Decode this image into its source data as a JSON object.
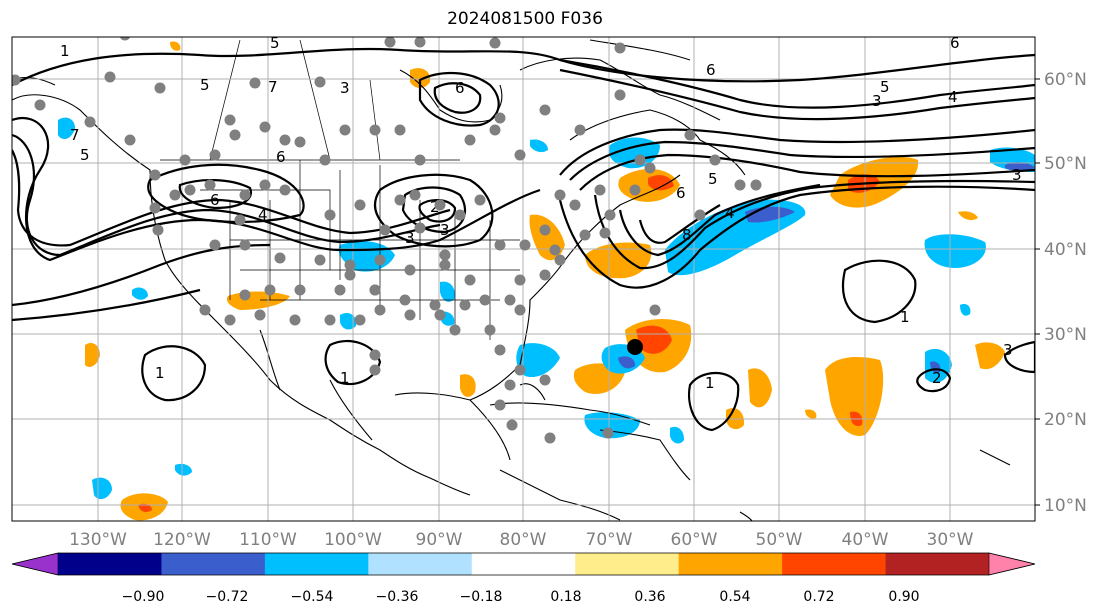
{
  "title": "2024081500 F036",
  "map": {
    "lon_labels": [
      "130°W",
      "120°W",
      "110°W",
      "100°W",
      "90°W",
      "80°W",
      "70°W",
      "60°W",
      "50°W",
      "40°W",
      "30°W"
    ],
    "lat_labels": [
      "60°N",
      "50°N",
      "40°N",
      "30°N",
      "20°N",
      "10°N"
    ],
    "contour_labels": [
      "1",
      "5",
      "7",
      "3",
      "6",
      "5",
      "6",
      "3",
      "5",
      "4",
      "6",
      "7",
      "5",
      "6",
      "4",
      "3",
      "2",
      "3",
      "3",
      "6",
      "4",
      "8",
      "5",
      "6",
      "1",
      "1",
      "1",
      "1",
      "2",
      "3"
    ]
  },
  "colorbar": {
    "ticks": [
      "−0.90",
      "−0.72",
      "−0.54",
      "−0.36",
      "−0.18",
      "0.18",
      "0.36",
      "0.54",
      "0.72",
      "0.90"
    ],
    "colors": [
      "#9932cc",
      "#00008b",
      "#3a5fcd",
      "#00bfff",
      "#b0e2ff",
      "#ffffff",
      "#ffec8b",
      "#ffa500",
      "#ff4500",
      "#b22222",
      "#ff82ab"
    ]
  }
}
